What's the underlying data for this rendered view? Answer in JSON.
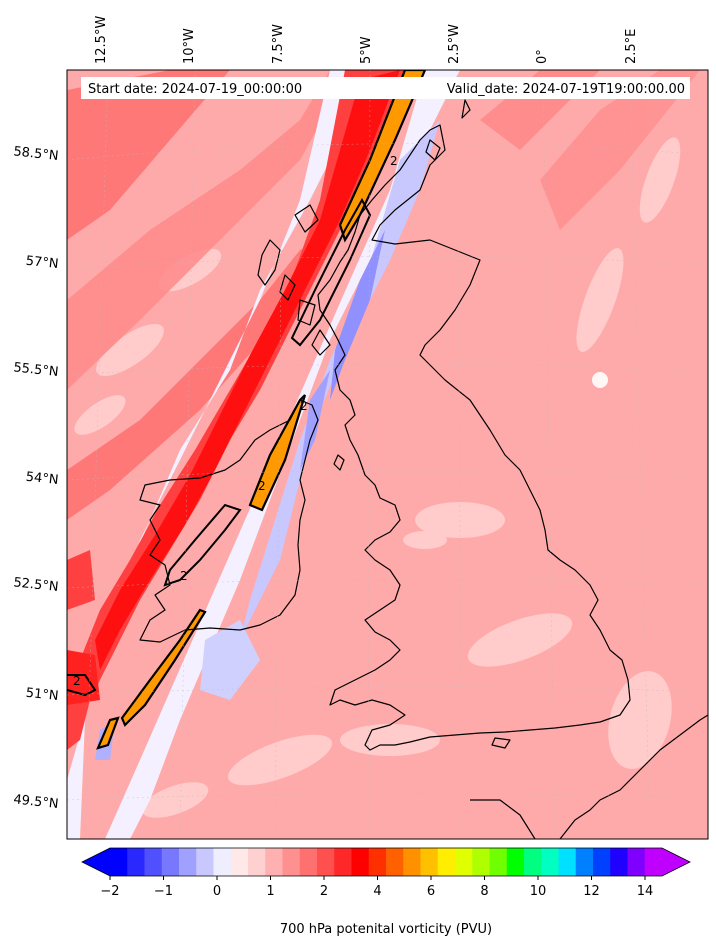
{
  "header": {
    "start_date": "Start date: 2024-07-19_00:00:00",
    "valid_date": "Valid_date: 2024-07-19T19:00:00.00"
  },
  "axes": {
    "lon_labels": [
      "12.5°W",
      "10°W",
      "7.5°W",
      "5°W",
      "2.5°W",
      "0°",
      "2.5°E"
    ],
    "lat_labels": [
      "58.5°N",
      "57°N",
      "55.5°N",
      "54°N",
      "52.5°N",
      "51°N",
      "49.5°N"
    ]
  },
  "contour_labels": [
    "2",
    "2",
    "2",
    "2",
    "2"
  ],
  "colorbar": {
    "title": "700 hPa potenital vorticity (PVU)",
    "tick_labels": [
      "−2",
      "−1",
      "0",
      "1",
      "2",
      "4",
      "6",
      "8",
      "10",
      "12",
      "14"
    ],
    "colors": [
      "#0000ff",
      "#2828ff",
      "#5050ff",
      "#7878ff",
      "#a0a0ff",
      "#c8c8ff",
      "#eeeeff",
      "#ffe8e8",
      "#ffd0d0",
      "#ffb0b0",
      "#ff9090",
      "#ff7070",
      "#ff5050",
      "#ff2828",
      "#ff0000",
      "#ff3000",
      "#ff6000",
      "#ff9000",
      "#ffc000",
      "#ffee00",
      "#e0ff00",
      "#b0ff00",
      "#70ff00",
      "#00ff00",
      "#00ff80",
      "#00ffc0",
      "#00e0ff",
      "#0080ff",
      "#0040ff",
      "#2000ff",
      "#8000ff",
      "#c000ff"
    ]
  },
  "colors": {
    "background": "#ffaaaa",
    "pv_strong": "#ff2020",
    "pv_medium": "#ff6666",
    "pv_negative": "#b0b8ff",
    "pv_high": "#ff9900",
    "coast": "#000000"
  }
}
